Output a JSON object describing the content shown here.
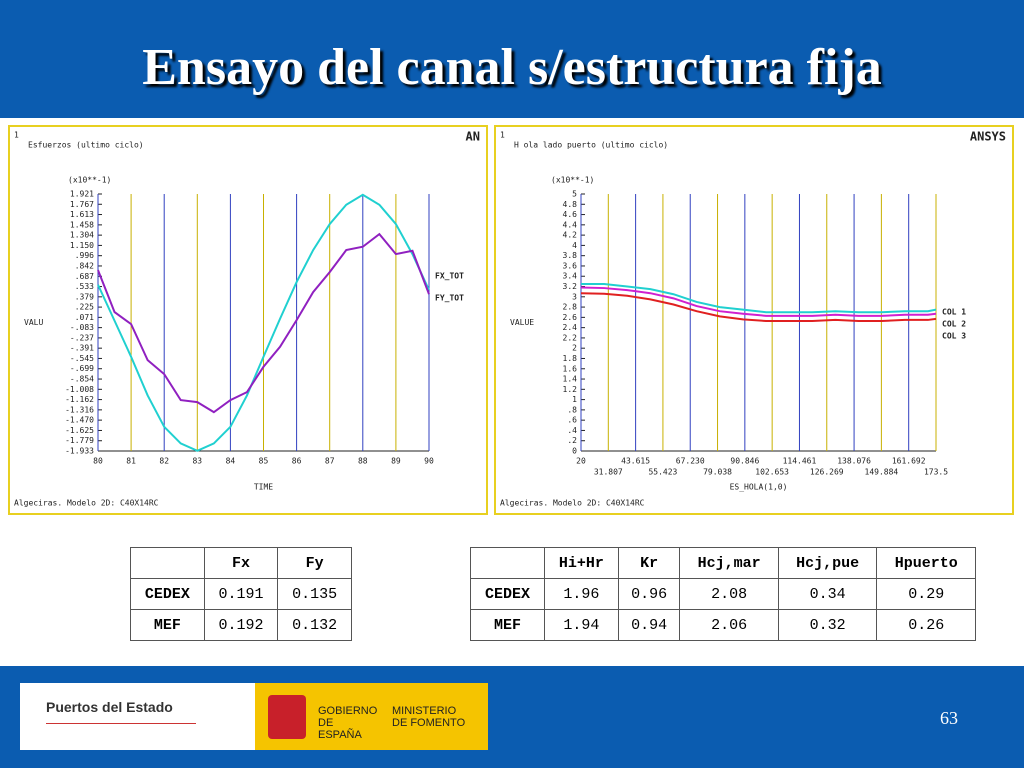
{
  "title": "Ensayo del canal s/estructura fija",
  "chart_data": [
    {
      "type": "line",
      "window": "1",
      "title": "Esfuerzos (ultimo ciclo)",
      "logo": "AN",
      "y_unit_label": "(x10**-1)",
      "ylabel": "VALU",
      "xlabel": "TIME",
      "footer": "Algeciras. Modelo 2D: C40X14RC",
      "x": [
        80,
        80.5,
        81,
        81.5,
        82,
        82.5,
        83,
        83.5,
        84,
        84.5,
        85,
        85.5,
        86,
        86.5,
        87,
        87.5,
        88,
        88.5,
        89,
        89.5,
        90
      ],
      "series": [
        {
          "name": "FX_TOT",
          "color": "#20d0d0",
          "values": [
            0.56,
            0.02,
            -0.52,
            -1.1,
            -1.57,
            -1.82,
            -1.93,
            -1.82,
            -1.57,
            -1.1,
            -0.52,
            0.05,
            0.6,
            1.08,
            1.47,
            1.76,
            1.91,
            1.76,
            1.47,
            1.02,
            0.48
          ]
        },
        {
          "name": "FY_TOT",
          "color": "#9020c0",
          "values": [
            0.78,
            0.15,
            -0.03,
            -0.57,
            -0.78,
            -1.17,
            -1.2,
            -1.35,
            -1.17,
            -1.05,
            -0.67,
            -0.37,
            0.03,
            0.45,
            0.75,
            1.08,
            1.13,
            1.32,
            1.02,
            1.07,
            0.42
          ]
        }
      ],
      "xlim": [
        80,
        90
      ],
      "xticks": [
        80,
        81,
        82,
        83,
        84,
        85,
        86,
        87,
        88,
        89,
        90
      ],
      "ylim": [
        -1.933,
        1.921
      ],
      "yticks": [
        -1.933,
        -1.779,
        -1.625,
        {
          "value": -1.47,
          "label": "-1.470"
        },
        -1.316,
        -1.162,
        -1.008,
        {
          "value": -0.854,
          "label": "-.854"
        },
        {
          "value": -0.699,
          "label": "-.699"
        },
        {
          "value": -0.545,
          "label": "-.545"
        },
        {
          "value": -0.391,
          "label": "-.391"
        },
        {
          "value": -0.237,
          "label": "-.237"
        },
        {
          "value": -0.083,
          "label": "-.083"
        },
        {
          "value": 0.071,
          "label": ".071"
        },
        {
          "value": 0.225,
          "label": ".225"
        },
        {
          "value": 0.379,
          "label": ".379"
        },
        {
          "value": 0.533,
          "label": ".533"
        },
        {
          "value": 0.687,
          "label": ".687"
        },
        {
          "value": 0.842,
          "label": ".842"
        },
        {
          "value": 0.996,
          "label": ".996"
        },
        {
          "value": 1.15,
          "label": "1.150"
        },
        1.304,
        1.458,
        1.613,
        1.767,
        1.921
      ],
      "grid": true
    },
    {
      "type": "line",
      "window": "1",
      "title": "H ola lado puerto (ultimo ciclo)",
      "logo": "ANSYS",
      "y_unit_label": "(x10**-1)",
      "ylabel": "VALUE",
      "xlabel": "ES_HOLA(1,0)",
      "footer": "Algeciras. Modelo 2D: C40X14RC",
      "x": [
        20,
        30,
        40,
        50,
        60,
        70,
        80,
        90,
        100,
        110,
        120,
        130,
        140,
        150,
        160,
        170,
        173.5
      ],
      "series": [
        {
          "name": "COL 1",
          "color": "#20d0d0",
          "values": [
            3.25,
            3.25,
            3.2,
            3.15,
            3.05,
            2.9,
            2.8,
            2.75,
            2.7,
            2.7,
            2.7,
            2.72,
            2.7,
            2.7,
            2.72,
            2.72,
            2.75
          ]
        },
        {
          "name": "COL 2",
          "color": "#d020d0",
          "values": [
            3.18,
            3.17,
            3.13,
            3.07,
            2.97,
            2.82,
            2.72,
            2.67,
            2.63,
            2.63,
            2.63,
            2.65,
            2.63,
            2.63,
            2.65,
            2.65,
            2.67
          ]
        },
        {
          "name": "COL 3",
          "color": "#e02020",
          "values": [
            3.07,
            3.06,
            3.02,
            2.95,
            2.85,
            2.72,
            2.62,
            2.56,
            2.53,
            2.53,
            2.53,
            2.55,
            2.53,
            2.53,
            2.55,
            2.55,
            2.57
          ]
        }
      ],
      "xlim": [
        20,
        173.5
      ],
      "xticks": [
        20,
        31.807,
        43.615,
        55.423,
        {
          "value": 67.23,
          "label": "67.230"
        },
        79.038,
        90.846,
        102.653,
        114.461,
        126.269,
        138.076,
        149.884,
        161.692,
        173.5
      ],
      "ylim": [
        0,
        5
      ],
      "yticks": [
        0,
        {
          "value": 0.2,
          "label": ".2"
        },
        {
          "value": 0.4,
          "label": ".4"
        },
        {
          "value": 0.6,
          "label": ".6"
        },
        {
          "value": 0.8,
          "label": ".8"
        },
        1,
        1.2,
        1.4,
        1.6,
        1.8,
        2,
        2.2,
        2.4,
        2.6,
        2.8,
        3,
        3.2,
        3.4,
        3.6,
        3.8,
        4,
        4.2,
        4.4,
        4.6,
        4.8,
        5
      ],
      "grid": true
    }
  ],
  "tables": [
    {
      "header": [
        "",
        "Fx",
        "Fy"
      ],
      "rows": [
        [
          "CEDEX",
          "0.191",
          "0.135"
        ],
        [
          "MEF",
          "0.192",
          "0.132"
        ]
      ]
    },
    {
      "header": [
        "",
        "Hi+Hr",
        "Kr",
        "Hcj,mar",
        "Hcj,pue",
        "Hpuerto"
      ],
      "rows": [
        [
          "CEDEX",
          "1.96",
          "0.96",
          "2.08",
          "0.34",
          "0.29"
        ],
        [
          "MEF",
          "1.94",
          "0.94",
          "2.06",
          "0.32",
          "0.26"
        ]
      ]
    }
  ],
  "footer": {
    "org": "Puertos del Estado",
    "gov": "GOBIERNO DE ESPAÑA",
    "ministry": "MINISTERIO DE FOMENTO",
    "page": "63"
  }
}
